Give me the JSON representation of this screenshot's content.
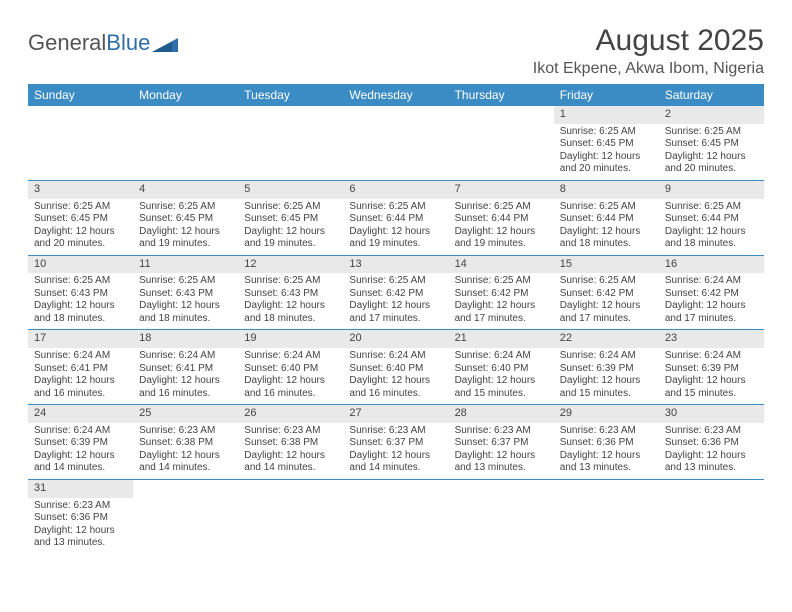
{
  "logo": {
    "text1": "General",
    "text2": "Blue"
  },
  "title": "August 2025",
  "location": "Ikot Ekpene, Akwa Ibom, Nigeria",
  "colors": {
    "header_bg": "#3b8bc4",
    "header_text": "#ffffff",
    "daynum_bg": "#e9e9e9",
    "border": "#3b8bc4",
    "logo_blue": "#2f6fa7",
    "text": "#444444"
  },
  "daysOfWeek": [
    "Sunday",
    "Monday",
    "Tuesday",
    "Wednesday",
    "Thursday",
    "Friday",
    "Saturday"
  ],
  "weeks": [
    [
      null,
      null,
      null,
      null,
      null,
      {
        "n": "1",
        "sr": "Sunrise: 6:25 AM",
        "ss": "Sunset: 6:45 PM",
        "d1": "Daylight: 12 hours",
        "d2": "and 20 minutes."
      },
      {
        "n": "2",
        "sr": "Sunrise: 6:25 AM",
        "ss": "Sunset: 6:45 PM",
        "d1": "Daylight: 12 hours",
        "d2": "and 20 minutes."
      }
    ],
    [
      {
        "n": "3",
        "sr": "Sunrise: 6:25 AM",
        "ss": "Sunset: 6:45 PM",
        "d1": "Daylight: 12 hours",
        "d2": "and 20 minutes."
      },
      {
        "n": "4",
        "sr": "Sunrise: 6:25 AM",
        "ss": "Sunset: 6:45 PM",
        "d1": "Daylight: 12 hours",
        "d2": "and 19 minutes."
      },
      {
        "n": "5",
        "sr": "Sunrise: 6:25 AM",
        "ss": "Sunset: 6:45 PM",
        "d1": "Daylight: 12 hours",
        "d2": "and 19 minutes."
      },
      {
        "n": "6",
        "sr": "Sunrise: 6:25 AM",
        "ss": "Sunset: 6:44 PM",
        "d1": "Daylight: 12 hours",
        "d2": "and 19 minutes."
      },
      {
        "n": "7",
        "sr": "Sunrise: 6:25 AM",
        "ss": "Sunset: 6:44 PM",
        "d1": "Daylight: 12 hours",
        "d2": "and 19 minutes."
      },
      {
        "n": "8",
        "sr": "Sunrise: 6:25 AM",
        "ss": "Sunset: 6:44 PM",
        "d1": "Daylight: 12 hours",
        "d2": "and 18 minutes."
      },
      {
        "n": "9",
        "sr": "Sunrise: 6:25 AM",
        "ss": "Sunset: 6:44 PM",
        "d1": "Daylight: 12 hours",
        "d2": "and 18 minutes."
      }
    ],
    [
      {
        "n": "10",
        "sr": "Sunrise: 6:25 AM",
        "ss": "Sunset: 6:43 PM",
        "d1": "Daylight: 12 hours",
        "d2": "and 18 minutes."
      },
      {
        "n": "11",
        "sr": "Sunrise: 6:25 AM",
        "ss": "Sunset: 6:43 PM",
        "d1": "Daylight: 12 hours",
        "d2": "and 18 minutes."
      },
      {
        "n": "12",
        "sr": "Sunrise: 6:25 AM",
        "ss": "Sunset: 6:43 PM",
        "d1": "Daylight: 12 hours",
        "d2": "and 18 minutes."
      },
      {
        "n": "13",
        "sr": "Sunrise: 6:25 AM",
        "ss": "Sunset: 6:42 PM",
        "d1": "Daylight: 12 hours",
        "d2": "and 17 minutes."
      },
      {
        "n": "14",
        "sr": "Sunrise: 6:25 AM",
        "ss": "Sunset: 6:42 PM",
        "d1": "Daylight: 12 hours",
        "d2": "and 17 minutes."
      },
      {
        "n": "15",
        "sr": "Sunrise: 6:25 AM",
        "ss": "Sunset: 6:42 PM",
        "d1": "Daylight: 12 hours",
        "d2": "and 17 minutes."
      },
      {
        "n": "16",
        "sr": "Sunrise: 6:24 AM",
        "ss": "Sunset: 6:42 PM",
        "d1": "Daylight: 12 hours",
        "d2": "and 17 minutes."
      }
    ],
    [
      {
        "n": "17",
        "sr": "Sunrise: 6:24 AM",
        "ss": "Sunset: 6:41 PM",
        "d1": "Daylight: 12 hours",
        "d2": "and 16 minutes."
      },
      {
        "n": "18",
        "sr": "Sunrise: 6:24 AM",
        "ss": "Sunset: 6:41 PM",
        "d1": "Daylight: 12 hours",
        "d2": "and 16 minutes."
      },
      {
        "n": "19",
        "sr": "Sunrise: 6:24 AM",
        "ss": "Sunset: 6:40 PM",
        "d1": "Daylight: 12 hours",
        "d2": "and 16 minutes."
      },
      {
        "n": "20",
        "sr": "Sunrise: 6:24 AM",
        "ss": "Sunset: 6:40 PM",
        "d1": "Daylight: 12 hours",
        "d2": "and 16 minutes."
      },
      {
        "n": "21",
        "sr": "Sunrise: 6:24 AM",
        "ss": "Sunset: 6:40 PM",
        "d1": "Daylight: 12 hours",
        "d2": "and 15 minutes."
      },
      {
        "n": "22",
        "sr": "Sunrise: 6:24 AM",
        "ss": "Sunset: 6:39 PM",
        "d1": "Daylight: 12 hours",
        "d2": "and 15 minutes."
      },
      {
        "n": "23",
        "sr": "Sunrise: 6:24 AM",
        "ss": "Sunset: 6:39 PM",
        "d1": "Daylight: 12 hours",
        "d2": "and 15 minutes."
      }
    ],
    [
      {
        "n": "24",
        "sr": "Sunrise: 6:24 AM",
        "ss": "Sunset: 6:39 PM",
        "d1": "Daylight: 12 hours",
        "d2": "and 14 minutes."
      },
      {
        "n": "25",
        "sr": "Sunrise: 6:23 AM",
        "ss": "Sunset: 6:38 PM",
        "d1": "Daylight: 12 hours",
        "d2": "and 14 minutes."
      },
      {
        "n": "26",
        "sr": "Sunrise: 6:23 AM",
        "ss": "Sunset: 6:38 PM",
        "d1": "Daylight: 12 hours",
        "d2": "and 14 minutes."
      },
      {
        "n": "27",
        "sr": "Sunrise: 6:23 AM",
        "ss": "Sunset: 6:37 PM",
        "d1": "Daylight: 12 hours",
        "d2": "and 14 minutes."
      },
      {
        "n": "28",
        "sr": "Sunrise: 6:23 AM",
        "ss": "Sunset: 6:37 PM",
        "d1": "Daylight: 12 hours",
        "d2": "and 13 minutes."
      },
      {
        "n": "29",
        "sr": "Sunrise: 6:23 AM",
        "ss": "Sunset: 6:36 PM",
        "d1": "Daylight: 12 hours",
        "d2": "and 13 minutes."
      },
      {
        "n": "30",
        "sr": "Sunrise: 6:23 AM",
        "ss": "Sunset: 6:36 PM",
        "d1": "Daylight: 12 hours",
        "d2": "and 13 minutes."
      }
    ],
    [
      {
        "n": "31",
        "sr": "Sunrise: 6:23 AM",
        "ss": "Sunset: 6:36 PM",
        "d1": "Daylight: 12 hours",
        "d2": "and 13 minutes."
      },
      null,
      null,
      null,
      null,
      null,
      null
    ]
  ]
}
